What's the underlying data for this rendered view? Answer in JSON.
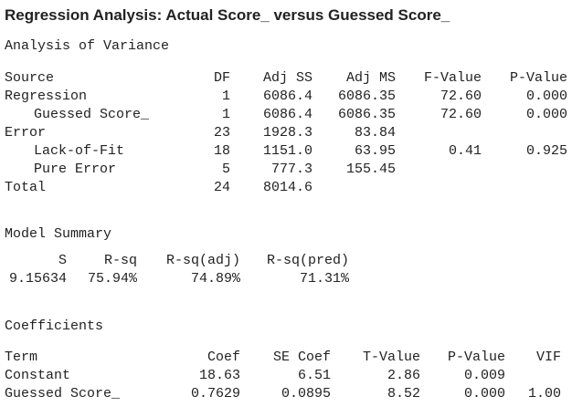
{
  "title": "Regression Analysis: Actual Score_ versus Guessed Score_",
  "anova": {
    "heading": "Analysis of Variance",
    "columns": [
      "Source",
      "DF",
      "Adj SS",
      "Adj MS",
      "F-Value",
      "P-Value"
    ],
    "rows": [
      {
        "source": "Regression",
        "df": "1",
        "adj_ss": "6086.4",
        "adj_ms": "6086.35",
        "f": "72.60",
        "p": "0.000"
      },
      {
        "source": "Guessed Score_",
        "df": "1",
        "adj_ss": "6086.4",
        "adj_ms": "6086.35",
        "f": "72.60",
        "p": "0.000"
      },
      {
        "source": "Error",
        "df": "23",
        "adj_ss": "1928.3",
        "adj_ms": "83.84"
      },
      {
        "source": "Lack-of-Fit",
        "df": "18",
        "adj_ss": "1151.0",
        "adj_ms": "63.95",
        "f": "0.41",
        "p": "0.925"
      },
      {
        "source": "Pure Error",
        "df": "5",
        "adj_ss": "777.3",
        "adj_ms": "155.45"
      },
      {
        "source": "Total",
        "df": "24",
        "adj_ss": "8014.6"
      }
    ]
  },
  "model_summary": {
    "heading": "Model Summary",
    "columns": [
      "S",
      "R-sq",
      "R-sq(adj)",
      "R-sq(pred)"
    ],
    "row": [
      "9.15634",
      "75.94%",
      "74.89%",
      "71.31%"
    ]
  },
  "coefficients": {
    "heading": "Coefficients",
    "columns": [
      "Term",
      "Coef",
      "SE Coef",
      "T-Value",
      "P-Value",
      "VIF"
    ],
    "rows": [
      {
        "term": "Constant",
        "coef": "18.63",
        "se": "6.51",
        "t": "2.86",
        "p": "0.009"
      },
      {
        "term": "Guessed Score_",
        "coef": "0.7629",
        "se": "0.0895",
        "t": "8.52",
        "p": "0.000",
        "vif": "1.00"
      }
    ]
  }
}
